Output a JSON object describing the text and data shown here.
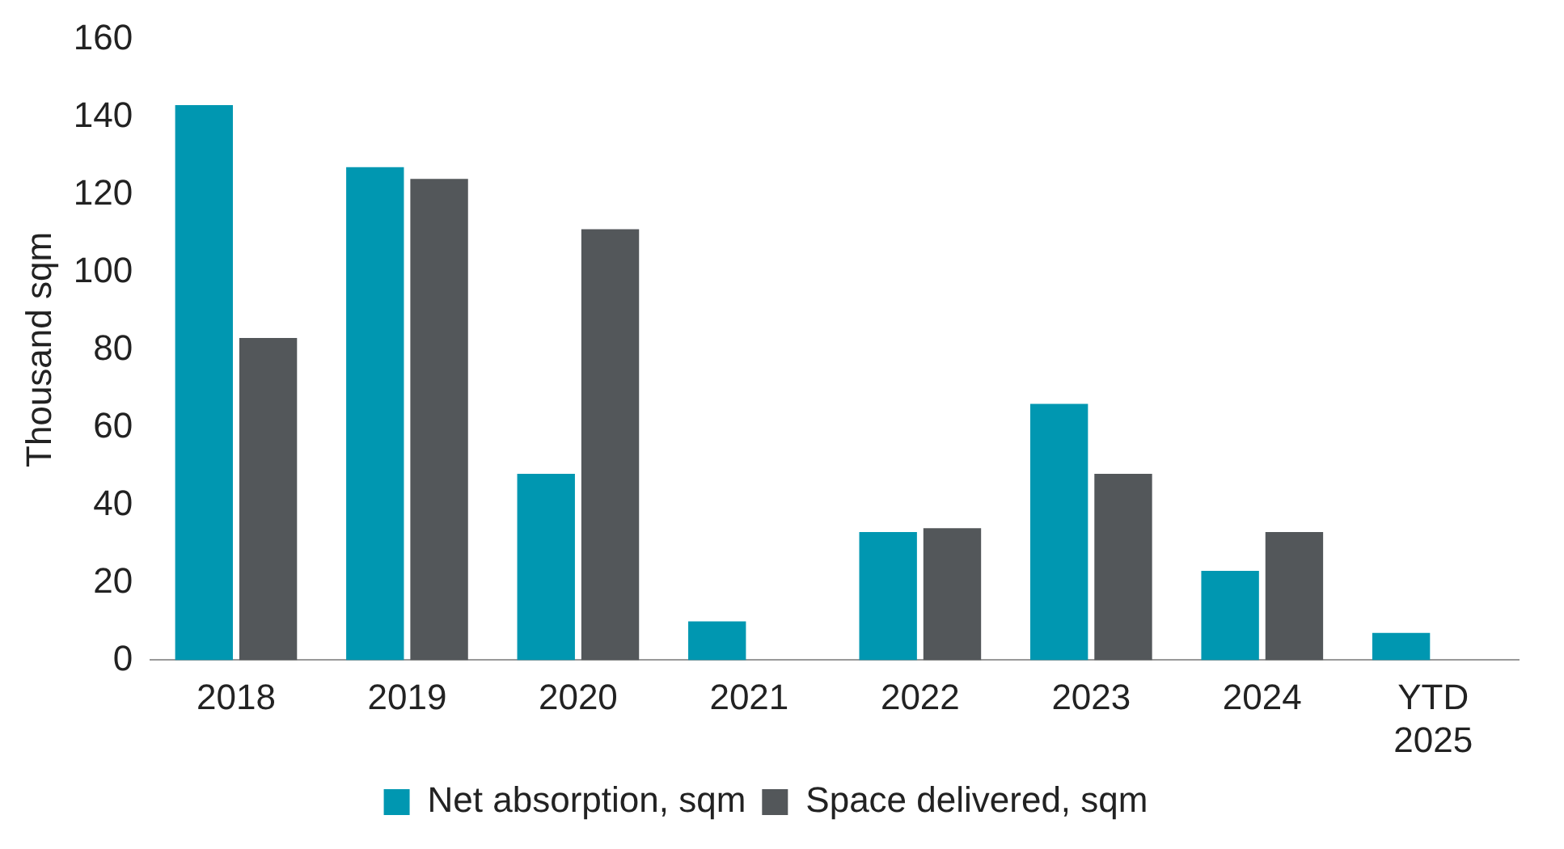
{
  "chart_data": {
    "type": "bar",
    "ylabel": "Thousand sqm",
    "categories": [
      "2018",
      "2019",
      "2020",
      "2021",
      "2022",
      "2023",
      "2024",
      "YTD 2025"
    ],
    "series": [
      {
        "name": "Net absorption, sqm",
        "color": "#0097b1",
        "values": [
          143,
          127,
          48,
          10,
          33,
          66,
          23,
          7
        ]
      },
      {
        "name": "Space delivered, sqm",
        "color": "#53575a",
        "values": [
          83,
          124,
          111,
          0,
          34,
          48,
          33,
          0
        ]
      }
    ],
    "ylim": [
      0,
      160
    ],
    "yticks": [
      0,
      20,
      40,
      60,
      80,
      100,
      120,
      140,
      160
    ],
    "grid": false,
    "legend": "bottom"
  }
}
